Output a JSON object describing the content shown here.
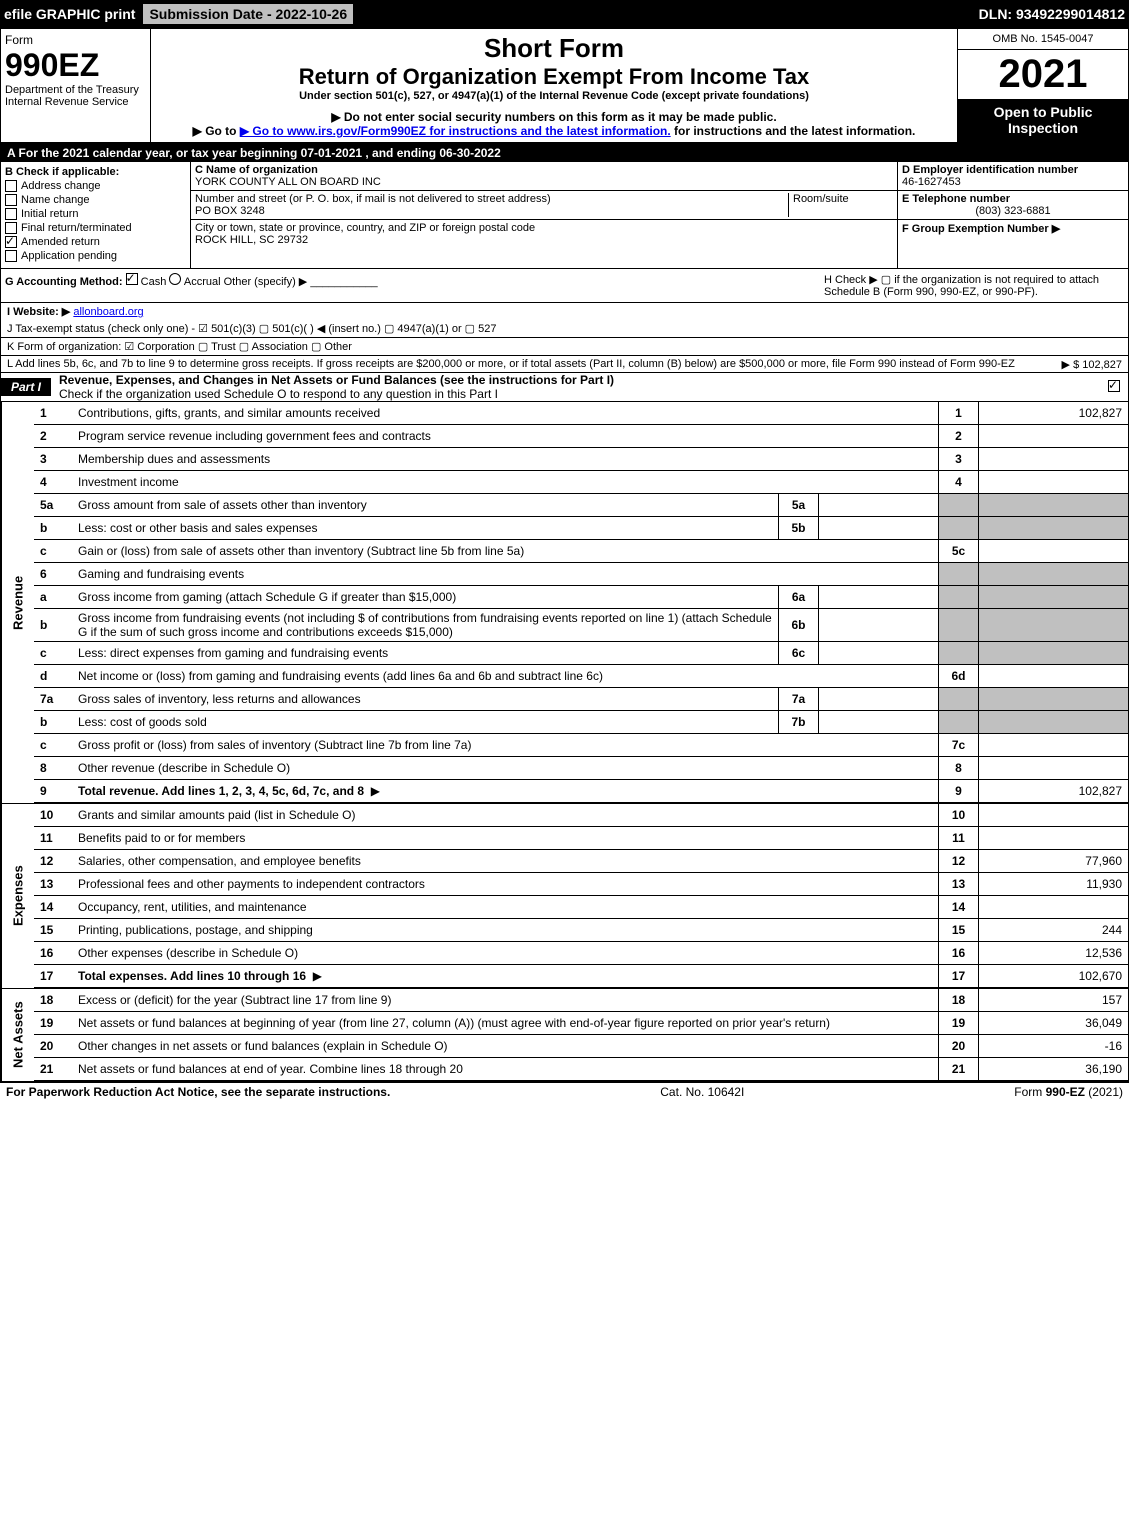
{
  "topbar": {
    "efile": "efile GRAPHIC print",
    "submission": "Submission Date - 2022-10-26",
    "dln": "DLN: 93492299014812"
  },
  "header": {
    "form": "Form",
    "formNumber": "990EZ",
    "dept": "Department of the Treasury",
    "irs": "Internal Revenue Service",
    "shortForm": "Short Form",
    "title": "Return of Organization Exempt From Income Tax",
    "underSection": "Under section 501(c), 527, or 4947(a)(1) of the Internal Revenue Code (except private foundations)",
    "ssn": "▶ Do not enter social security numbers on this form as it may be made public.",
    "goto": "▶ Go to www.irs.gov/Form990EZ for instructions and the latest information.",
    "omb": "OMB No. 1545-0047",
    "year": "2021",
    "open": "Open to Public Inspection"
  },
  "rowA": "A  For the 2021 calendar year, or tax year beginning 07-01-2021 , and ending 06-30-2022",
  "sectionB": {
    "label": "B  Check if applicable:",
    "items": [
      "Address change",
      "Name change",
      "Initial return",
      "Final return/terminated",
      "Amended return",
      "Application pending"
    ],
    "checked": [
      false,
      false,
      false,
      false,
      true,
      false
    ]
  },
  "sectionC": {
    "nameLabel": "C Name of organization",
    "name": "YORK COUNTY ALL ON BOARD INC",
    "streetLabel": "Number and street (or P. O. box, if mail is not delivered to street address)",
    "roomLabel": "Room/suite",
    "street": "PO BOX 3248",
    "cityLabel": "City or town, state or province, country, and ZIP or foreign postal code",
    "city": "ROCK HILL, SC  29732"
  },
  "sectionD": {
    "einLabel": "D Employer identification number",
    "ein": "46-1627453",
    "phoneLabel": "E Telephone number",
    "phone": "(803) 323-6881",
    "groupLabel": "F Group Exemption Number  ▶"
  },
  "sectionG": {
    "label": "G Accounting Method:",
    "cash": "Cash",
    "accrual": "Accrual",
    "other": "Other (specify) ▶"
  },
  "sectionH": {
    "text": "H  Check ▶  ▢  if the organization is not required to attach Schedule B (Form 990, 990-EZ, or 990-PF)."
  },
  "website": {
    "label": "I Website: ▶",
    "url": "allonboard.org"
  },
  "taxExempt": "J Tax-exempt status (check only one) - ☑ 501(c)(3) ▢ 501(c)(  ) ◀ (insert no.) ▢ 4947(a)(1) or ▢ 527",
  "kRow": "K Form of organization:  ☑ Corporation  ▢ Trust  ▢ Association  ▢ Other",
  "lRow": {
    "text": "L Add lines 5b, 6c, and 7b to line 9 to determine gross receipts. If gross receipts are $200,000 or more, or if total assets (Part II, column (B) below) are $500,000 or more, file Form 990 instead of Form 990-EZ",
    "amount": "▶ $ 102,827"
  },
  "part1": {
    "label": "Part I",
    "title": "Revenue, Expenses, and Changes in Net Assets or Fund Balances (see the instructions for Part I)",
    "subtitle": "Check if the organization used Schedule O to respond to any question in this Part I"
  },
  "revenue": {
    "side": "Revenue",
    "lines": [
      {
        "num": "1",
        "desc": "Contributions, gifts, grants, and similar amounts received",
        "box": "1",
        "val": "102,827"
      },
      {
        "num": "2",
        "desc": "Program service revenue including government fees and contracts",
        "box": "2",
        "val": ""
      },
      {
        "num": "3",
        "desc": "Membership dues and assessments",
        "box": "3",
        "val": ""
      },
      {
        "num": "4",
        "desc": "Investment income",
        "box": "4",
        "val": ""
      },
      {
        "num": "5a",
        "desc": "Gross amount from sale of assets other than inventory",
        "subbox": "5a",
        "gray": true
      },
      {
        "num": "b",
        "desc": "Less: cost or other basis and sales expenses",
        "subbox": "5b",
        "gray": true
      },
      {
        "num": "c",
        "desc": "Gain or (loss) from sale of assets other than inventory (Subtract line 5b from line 5a)",
        "box": "5c",
        "val": ""
      },
      {
        "num": "6",
        "desc": "Gaming and fundraising events",
        "gray": true
      },
      {
        "num": "a",
        "desc": "Gross income from gaming (attach Schedule G if greater than $15,000)",
        "subbox": "6a",
        "gray": true
      },
      {
        "num": "b",
        "desc": "Gross income from fundraising events (not including $                    of contributions from fundraising events reported on line 1) (attach Schedule G if the sum of such gross income and contributions exceeds $15,000)",
        "subbox": "6b",
        "gray": true
      },
      {
        "num": "c",
        "desc": "Less: direct expenses from gaming and fundraising events",
        "subbox": "6c",
        "gray": true
      },
      {
        "num": "d",
        "desc": "Net income or (loss) from gaming and fundraising events (add lines 6a and 6b and subtract line 6c)",
        "box": "6d",
        "val": ""
      },
      {
        "num": "7a",
        "desc": "Gross sales of inventory, less returns and allowances",
        "subbox": "7a",
        "gray": true
      },
      {
        "num": "b",
        "desc": "Less: cost of goods sold",
        "subbox": "7b",
        "gray": true
      },
      {
        "num": "c",
        "desc": "Gross profit or (loss) from sales of inventory (Subtract line 7b from line 7a)",
        "box": "7c",
        "val": ""
      },
      {
        "num": "8",
        "desc": "Other revenue (describe in Schedule O)",
        "box": "8",
        "val": ""
      },
      {
        "num": "9",
        "desc": "Total revenue. Add lines 1, 2, 3, 4, 5c, 6d, 7c, and 8",
        "box": "9",
        "val": "102,827",
        "bold": true,
        "arrow": true
      }
    ]
  },
  "expenses": {
    "side": "Expenses",
    "lines": [
      {
        "num": "10",
        "desc": "Grants and similar amounts paid (list in Schedule O)",
        "box": "10",
        "val": ""
      },
      {
        "num": "11",
        "desc": "Benefits paid to or for members",
        "box": "11",
        "val": ""
      },
      {
        "num": "12",
        "desc": "Salaries, other compensation, and employee benefits",
        "box": "12",
        "val": "77,960"
      },
      {
        "num": "13",
        "desc": "Professional fees and other payments to independent contractors",
        "box": "13",
        "val": "11,930"
      },
      {
        "num": "14",
        "desc": "Occupancy, rent, utilities, and maintenance",
        "box": "14",
        "val": ""
      },
      {
        "num": "15",
        "desc": "Printing, publications, postage, and shipping",
        "box": "15",
        "val": "244"
      },
      {
        "num": "16",
        "desc": "Other expenses (describe in Schedule O)",
        "box": "16",
        "val": "12,536"
      },
      {
        "num": "17",
        "desc": "Total expenses. Add lines 10 through 16",
        "box": "17",
        "val": "102,670",
        "bold": true,
        "arrow": true
      }
    ]
  },
  "netassets": {
    "side": "Net Assets",
    "lines": [
      {
        "num": "18",
        "desc": "Excess or (deficit) for the year (Subtract line 17 from line 9)",
        "box": "18",
        "val": "157"
      },
      {
        "num": "19",
        "desc": "Net assets or fund balances at beginning of year (from line 27, column (A)) (must agree with end-of-year figure reported on prior year's return)",
        "box": "19",
        "val": "36,049"
      },
      {
        "num": "20",
        "desc": "Other changes in net assets or fund balances (explain in Schedule O)",
        "box": "20",
        "val": "-16"
      },
      {
        "num": "21",
        "desc": "Net assets or fund balances at end of year. Combine lines 18 through 20",
        "box": "21",
        "val": "36,190"
      }
    ]
  },
  "footer": {
    "left": "For Paperwork Reduction Act Notice, see the separate instructions.",
    "center": "Cat. No. 10642I",
    "right": "Form 990-EZ (2021)"
  }
}
